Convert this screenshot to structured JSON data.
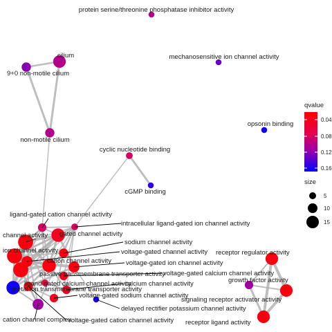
{
  "nodes": [
    {
      "id": "n01",
      "label": "protein serine/threonine phosphatase inhibitor activity",
      "size": 3,
      "qvalue": 0.11
    },
    {
      "id": "n02",
      "label": "cilium",
      "size": 11,
      "qvalue": 0.11
    },
    {
      "id": "n03",
      "label": "9+0 non-motile cilium",
      "size": 7,
      "qvalue": 0.13
    },
    {
      "id": "n04",
      "label": "mechanosensitive ion channel activity",
      "size": 3,
      "qvalue": 0.14
    },
    {
      "id": "n05",
      "label": "opsonin binding",
      "size": 3,
      "qvalue": 0.17
    },
    {
      "id": "n06",
      "label": "non-motile cilium",
      "size": 7,
      "qvalue": 0.11
    },
    {
      "id": "n07",
      "label": "cyclic nucleotide binding",
      "size": 4,
      "qvalue": 0.09
    },
    {
      "id": "n08",
      "label": "cGMP binding",
      "size": 3,
      "qvalue": 0.16
    },
    {
      "id": "n09",
      "label": "ligand-gated cation channel activity",
      "size": 6,
      "qvalue": 0.09
    },
    {
      "id": "n10",
      "label": "intracellular ligand-gated ion channel activity",
      "size": 4,
      "qvalue": 0.09
    },
    {
      "id": "n11",
      "label": "gated channel activity",
      "size": 12,
      "qvalue": 0.05
    },
    {
      "id": "n12",
      "label": "channel activity",
      "size": 14,
      "qvalue": 0.04
    },
    {
      "id": "n13",
      "label": "ion channel activity",
      "size": 14,
      "qvalue": 0.04
    },
    {
      "id": "n14",
      "label": "sodium channel activity",
      "size": 7,
      "qvalue": 0.04
    },
    {
      "id": "n15",
      "label": "voltage-gated channel activity",
      "size": 9,
      "qvalue": 0.04
    },
    {
      "id": "n16",
      "label": "cation channel activity",
      "size": 12,
      "qvalue": 0.04
    },
    {
      "id": "n17",
      "label": "voltage-gated ion channel activity",
      "size": 9,
      "qvalue": 0.04
    },
    {
      "id": "n18",
      "label": "passive transmembrane transporter activity",
      "size": 14,
      "qvalue": 0.04
    },
    {
      "id": "n19",
      "label": "ligand-gated calcium channel activity",
      "size": 4,
      "qvalue": 0.07
    },
    {
      "id": "n20",
      "label": "voltage-gated calcium channel activity",
      "size": 6,
      "qvalue": 0.05
    },
    {
      "id": "n21",
      "label": "calcium channel activity",
      "size": 6,
      "qvalue": 0.05
    },
    {
      "id": "n22",
      "label": "voltage-gated sodium channel activity",
      "size": 6,
      "qvalue": 0.05
    },
    {
      "id": "n23",
      "label": "metal ion transmembrane transporter activity",
      "size": 12,
      "qvalue": 0.17
    },
    {
      "id": "n24",
      "label": "cation channel complex",
      "size": 9,
      "qvalue": 0.12
    },
    {
      "id": "n25",
      "label": "voltage-gated cation channel activity",
      "size": 7,
      "qvalue": 0.04
    },
    {
      "id": "n26",
      "label": "delayed rectifier potassium channel activity",
      "size": 3,
      "qvalue": 0.17
    },
    {
      "id": "n27",
      "label": "receptor regulator activity",
      "size": 11,
      "qvalue": 0.04
    },
    {
      "id": "n28",
      "label": "growth factor activity",
      "size": 6,
      "qvalue": 0.12
    },
    {
      "id": "n29",
      "label": "signaling receptor activator activity",
      "size": 11,
      "qvalue": 0.04
    },
    {
      "id": "n30",
      "label": "receptor ligand activity",
      "size": 11,
      "qvalue": 0.04
    }
  ],
  "edges": [
    {
      "source": "n02",
      "target": "n03",
      "weight": 2.5
    },
    {
      "source": "n02",
      "target": "n06",
      "weight": 3
    },
    {
      "source": "n03",
      "target": "n06",
      "weight": 3
    },
    {
      "source": "n06",
      "target": "n09",
      "weight": 1.5
    },
    {
      "source": "n07",
      "target": "n08",
      "weight": 3
    },
    {
      "source": "n07",
      "target": "n10",
      "weight": 1.5
    },
    {
      "source": "n09",
      "target": "n10",
      "weight": 2
    },
    {
      "source": "n09",
      "target": "n11",
      "weight": 2
    },
    {
      "source": "n09",
      "target": "n12",
      "weight": 2
    },
    {
      "source": "n09",
      "target": "n13",
      "weight": 2
    },
    {
      "source": "n09",
      "target": "n16",
      "weight": 2
    },
    {
      "source": "n09",
      "target": "n18",
      "weight": 2
    },
    {
      "source": "n09",
      "target": "n19",
      "weight": 1.5
    },
    {
      "source": "n10",
      "target": "n11",
      "weight": 2
    },
    {
      "source": "n10",
      "target": "n12",
      "weight": 1.5
    },
    {
      "source": "n10",
      "target": "n13",
      "weight": 1.5
    },
    {
      "source": "n10",
      "target": "n16",
      "weight": 1.5
    },
    {
      "source": "n10",
      "target": "n18",
      "weight": 1.5
    },
    {
      "source": "n10",
      "target": "n20",
      "weight": 1.5
    },
    {
      "source": "n10",
      "target": "n23",
      "weight": 1.5
    },
    {
      "source": "n10",
      "target": "n24",
      "weight": 1.5
    },
    {
      "source": "n10",
      "target": "n14",
      "weight": 1.5
    },
    {
      "source": "n10",
      "target": "n21",
      "weight": 1.5
    },
    {
      "source": "n11",
      "target": "n12",
      "weight": 3
    },
    {
      "source": "n11",
      "target": "n13",
      "weight": 3
    },
    {
      "source": "n11",
      "target": "n15",
      "weight": 3
    },
    {
      "source": "n11",
      "target": "n16",
      "weight": 3
    },
    {
      "source": "n11",
      "target": "n18",
      "weight": 3
    },
    {
      "source": "n11",
      "target": "n17",
      "weight": 3
    },
    {
      "source": "n11",
      "target": "n23",
      "weight": 2
    },
    {
      "source": "n12",
      "target": "n13",
      "weight": 4
    },
    {
      "source": "n12",
      "target": "n16",
      "weight": 4
    },
    {
      "source": "n12",
      "target": "n18",
      "weight": 4
    },
    {
      "source": "n12",
      "target": "n23",
      "weight": 3
    },
    {
      "source": "n12",
      "target": "n24",
      "weight": 2
    },
    {
      "source": "n12",
      "target": "n19",
      "weight": 2
    },
    {
      "source": "n13",
      "target": "n16",
      "weight": 4
    },
    {
      "source": "n13",
      "target": "n18",
      "weight": 4
    },
    {
      "source": "n13",
      "target": "n23",
      "weight": 3
    },
    {
      "source": "n13",
      "target": "n24",
      "weight": 2
    },
    {
      "source": "n13",
      "target": "n25",
      "weight": 2
    },
    {
      "source": "n13",
      "target": "n14",
      "weight": 2
    },
    {
      "source": "n14",
      "target": "n22",
      "weight": 2
    },
    {
      "source": "n14",
      "target": "n16",
      "weight": 2
    },
    {
      "source": "n15",
      "target": "n17",
      "weight": 4
    },
    {
      "source": "n15",
      "target": "n25",
      "weight": 3
    },
    {
      "source": "n15",
      "target": "n20",
      "weight": 2
    },
    {
      "source": "n16",
      "target": "n18",
      "weight": 4
    },
    {
      "source": "n16",
      "target": "n23",
      "weight": 3
    },
    {
      "source": "n16",
      "target": "n25",
      "weight": 3
    },
    {
      "source": "n16",
      "target": "n21",
      "weight": 2
    },
    {
      "source": "n17",
      "target": "n25",
      "weight": 3
    },
    {
      "source": "n17",
      "target": "n26",
      "weight": 1.5
    },
    {
      "source": "n18",
      "target": "n23",
      "weight": 3
    },
    {
      "source": "n18",
      "target": "n24",
      "weight": 2
    },
    {
      "source": "n19",
      "target": "n21",
      "weight": 2
    },
    {
      "source": "n20",
      "target": "n21",
      "weight": 3
    },
    {
      "source": "n22",
      "target": "n25",
      "weight": 2
    },
    {
      "source": "n23",
      "target": "n24",
      "weight": 2
    },
    {
      "source": "n24",
      "target": "n25",
      "weight": 2
    },
    {
      "source": "n27",
      "target": "n28",
      "weight": 2
    },
    {
      "source": "n27",
      "target": "n29",
      "weight": 4
    },
    {
      "source": "n27",
      "target": "n30",
      "weight": 4
    },
    {
      "source": "n28",
      "target": "n29",
      "weight": 2
    },
    {
      "source": "n28",
      "target": "n30",
      "weight": 3
    },
    {
      "source": "n29",
      "target": "n30",
      "weight": 4
    }
  ],
  "legend": {
    "qvalue": {
      "title": "qvalue",
      "ticks": [
        "0.04",
        "0.08",
        "0.12",
        "0.16"
      ],
      "color_low": "#ff0000",
      "color_high": "#0000ff"
    },
    "size": {
      "title": "size",
      "ticks": [
        "5",
        "10",
        "15"
      ]
    }
  },
  "colors": {
    "edge": "#b3b3b3",
    "label_text": "#1a1a1a"
  }
}
